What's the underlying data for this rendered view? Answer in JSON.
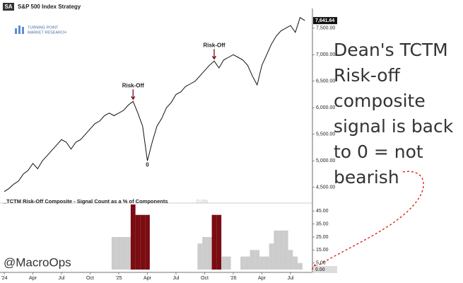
{
  "badge": "SA",
  "logo": [
    "TURNING POINT",
    "MARKET RESEARCH"
  ],
  "handle": "@MacroOps",
  "note": [
    "Dean's TCTM",
    "Risk-off",
    "composite",
    "signal is back",
    "to 0 = not",
    "bearish"
  ],
  "chart_data": [
    {
      "type": "line",
      "title": "S&P 500 Index Strategy",
      "color": "#111111",
      "categories": [
        "'24",
        null,
        null,
        null,
        null,
        null,
        "Apr",
        null,
        null,
        null,
        null,
        null,
        "Jul",
        null,
        null,
        null,
        null,
        null,
        "Oct",
        null,
        null,
        null,
        null,
        null,
        "'25",
        null,
        null,
        null,
        null,
        null,
        "Apr",
        null,
        null,
        null,
        null,
        null,
        "Jul",
        null,
        null,
        null,
        null,
        null,
        "Oct",
        null,
        null,
        null,
        null,
        null,
        "'26",
        null,
        null,
        null,
        null,
        null,
        "Apr",
        null,
        null,
        null,
        null,
        null,
        "Jul",
        null,
        null,
        null
      ],
      "values": [
        4420,
        4480,
        4560,
        4620,
        4750,
        4820,
        4950,
        4850,
        5000,
        5100,
        5200,
        5300,
        5400,
        5350,
        5220,
        5350,
        5400,
        5500,
        5600,
        5700,
        5750,
        5850,
        5900,
        5850,
        5900,
        5950,
        6050,
        6120,
        5900,
        5650,
        5000,
        5350,
        5650,
        5800,
        6000,
        6100,
        6250,
        6300,
        6400,
        6450,
        6500,
        6600,
        6700,
        6800,
        6880,
        6750,
        6900,
        6950,
        7000,
        6950,
        6900,
        6800,
        6600,
        6430,
        6800,
        7000,
        7200,
        7350,
        7450,
        7500,
        7550,
        7420,
        7700,
        7641.64
      ],
      "last_value": {
        "value": 7641.64,
        "label": "7,641.64"
      },
      "ylim": [
        4230,
        7870
      ],
      "yticks": [
        {
          "value": 4500,
          "label": "4,500.00"
        },
        {
          "value": 5000,
          "label": "5,000.00"
        },
        {
          "value": 5500,
          "label": "5,500.00"
        },
        {
          "value": 6000,
          "label": "6,000.00"
        },
        {
          "value": 6500,
          "label": "6,500.00"
        },
        {
          "value": 7000,
          "label": "7,000.00"
        },
        {
          "value": 7500,
          "label": "7,500.00"
        }
      ],
      "annotations": [
        "Risk-Off",
        "Risk-Off",
        "0"
      ]
    },
    {
      "type": "bar",
      "title": "_TCTM Risk-Off Composite - Signal Count as a % of Components",
      "subtitle": "0.0%",
      "values": [
        0,
        0,
        0,
        0,
        0,
        0,
        0,
        0,
        0,
        0,
        0,
        0,
        0,
        0,
        0,
        0,
        0,
        0,
        0,
        0,
        0,
        0,
        0,
        25,
        25,
        25,
        25,
        50,
        42,
        42,
        42,
        0,
        0,
        0,
        0,
        0,
        0,
        0,
        0,
        0,
        0,
        20,
        25,
        25,
        42,
        42,
        10,
        10,
        0,
        0,
        10,
        10,
        15,
        15,
        10,
        10,
        20,
        30,
        30,
        30,
        15,
        10,
        5,
        0
      ],
      "colors": [
        "#cccccc",
        "#cccccc",
        "#cccccc",
        "#cccccc",
        "#cccccc",
        "#cccccc",
        "#cccccc",
        "#cccccc",
        "#cccccc",
        "#cccccc",
        "#cccccc",
        "#cccccc",
        "#cccccc",
        "#cccccc",
        "#cccccc",
        "#cccccc",
        "#cccccc",
        "#cccccc",
        "#cccccc",
        "#cccccc",
        "#cccccc",
        "#cccccc",
        "#cccccc",
        "#cccccc",
        "#cccccc",
        "#cccccc",
        "#cccccc",
        "#7a0c12",
        "#7a0c12",
        "#7a0c12",
        "#7a0c12",
        "#cccccc",
        "#cccccc",
        "#cccccc",
        "#cccccc",
        "#cccccc",
        "#cccccc",
        "#cccccc",
        "#cccccc",
        "#cccccc",
        "#cccccc",
        "#cccccc",
        "#cccccc",
        "#cccccc",
        "#7a0c12",
        "#7a0c12",
        "#cccccc",
        "#cccccc",
        "#cccccc",
        "#cccccc",
        "#cccccc",
        "#cccccc",
        "#cccccc",
        "#cccccc",
        "#cccccc",
        "#cccccc",
        "#cccccc",
        "#cccccc",
        "#cccccc",
        "#cccccc",
        "#cccccc",
        "#cccccc",
        "#cccccc",
        "#cccccc"
      ],
      "last_value": {
        "value": 0,
        "label": "0.00"
      },
      "ylim": [
        0,
        50
      ],
      "yticks": [
        {
          "value": 5,
          "label": "5.00"
        },
        {
          "value": 15,
          "label": "15.00"
        },
        {
          "value": 25,
          "label": "25.00"
        },
        {
          "value": 35,
          "label": "35.00"
        },
        {
          "value": 45,
          "label": "45.00"
        }
      ]
    }
  ]
}
